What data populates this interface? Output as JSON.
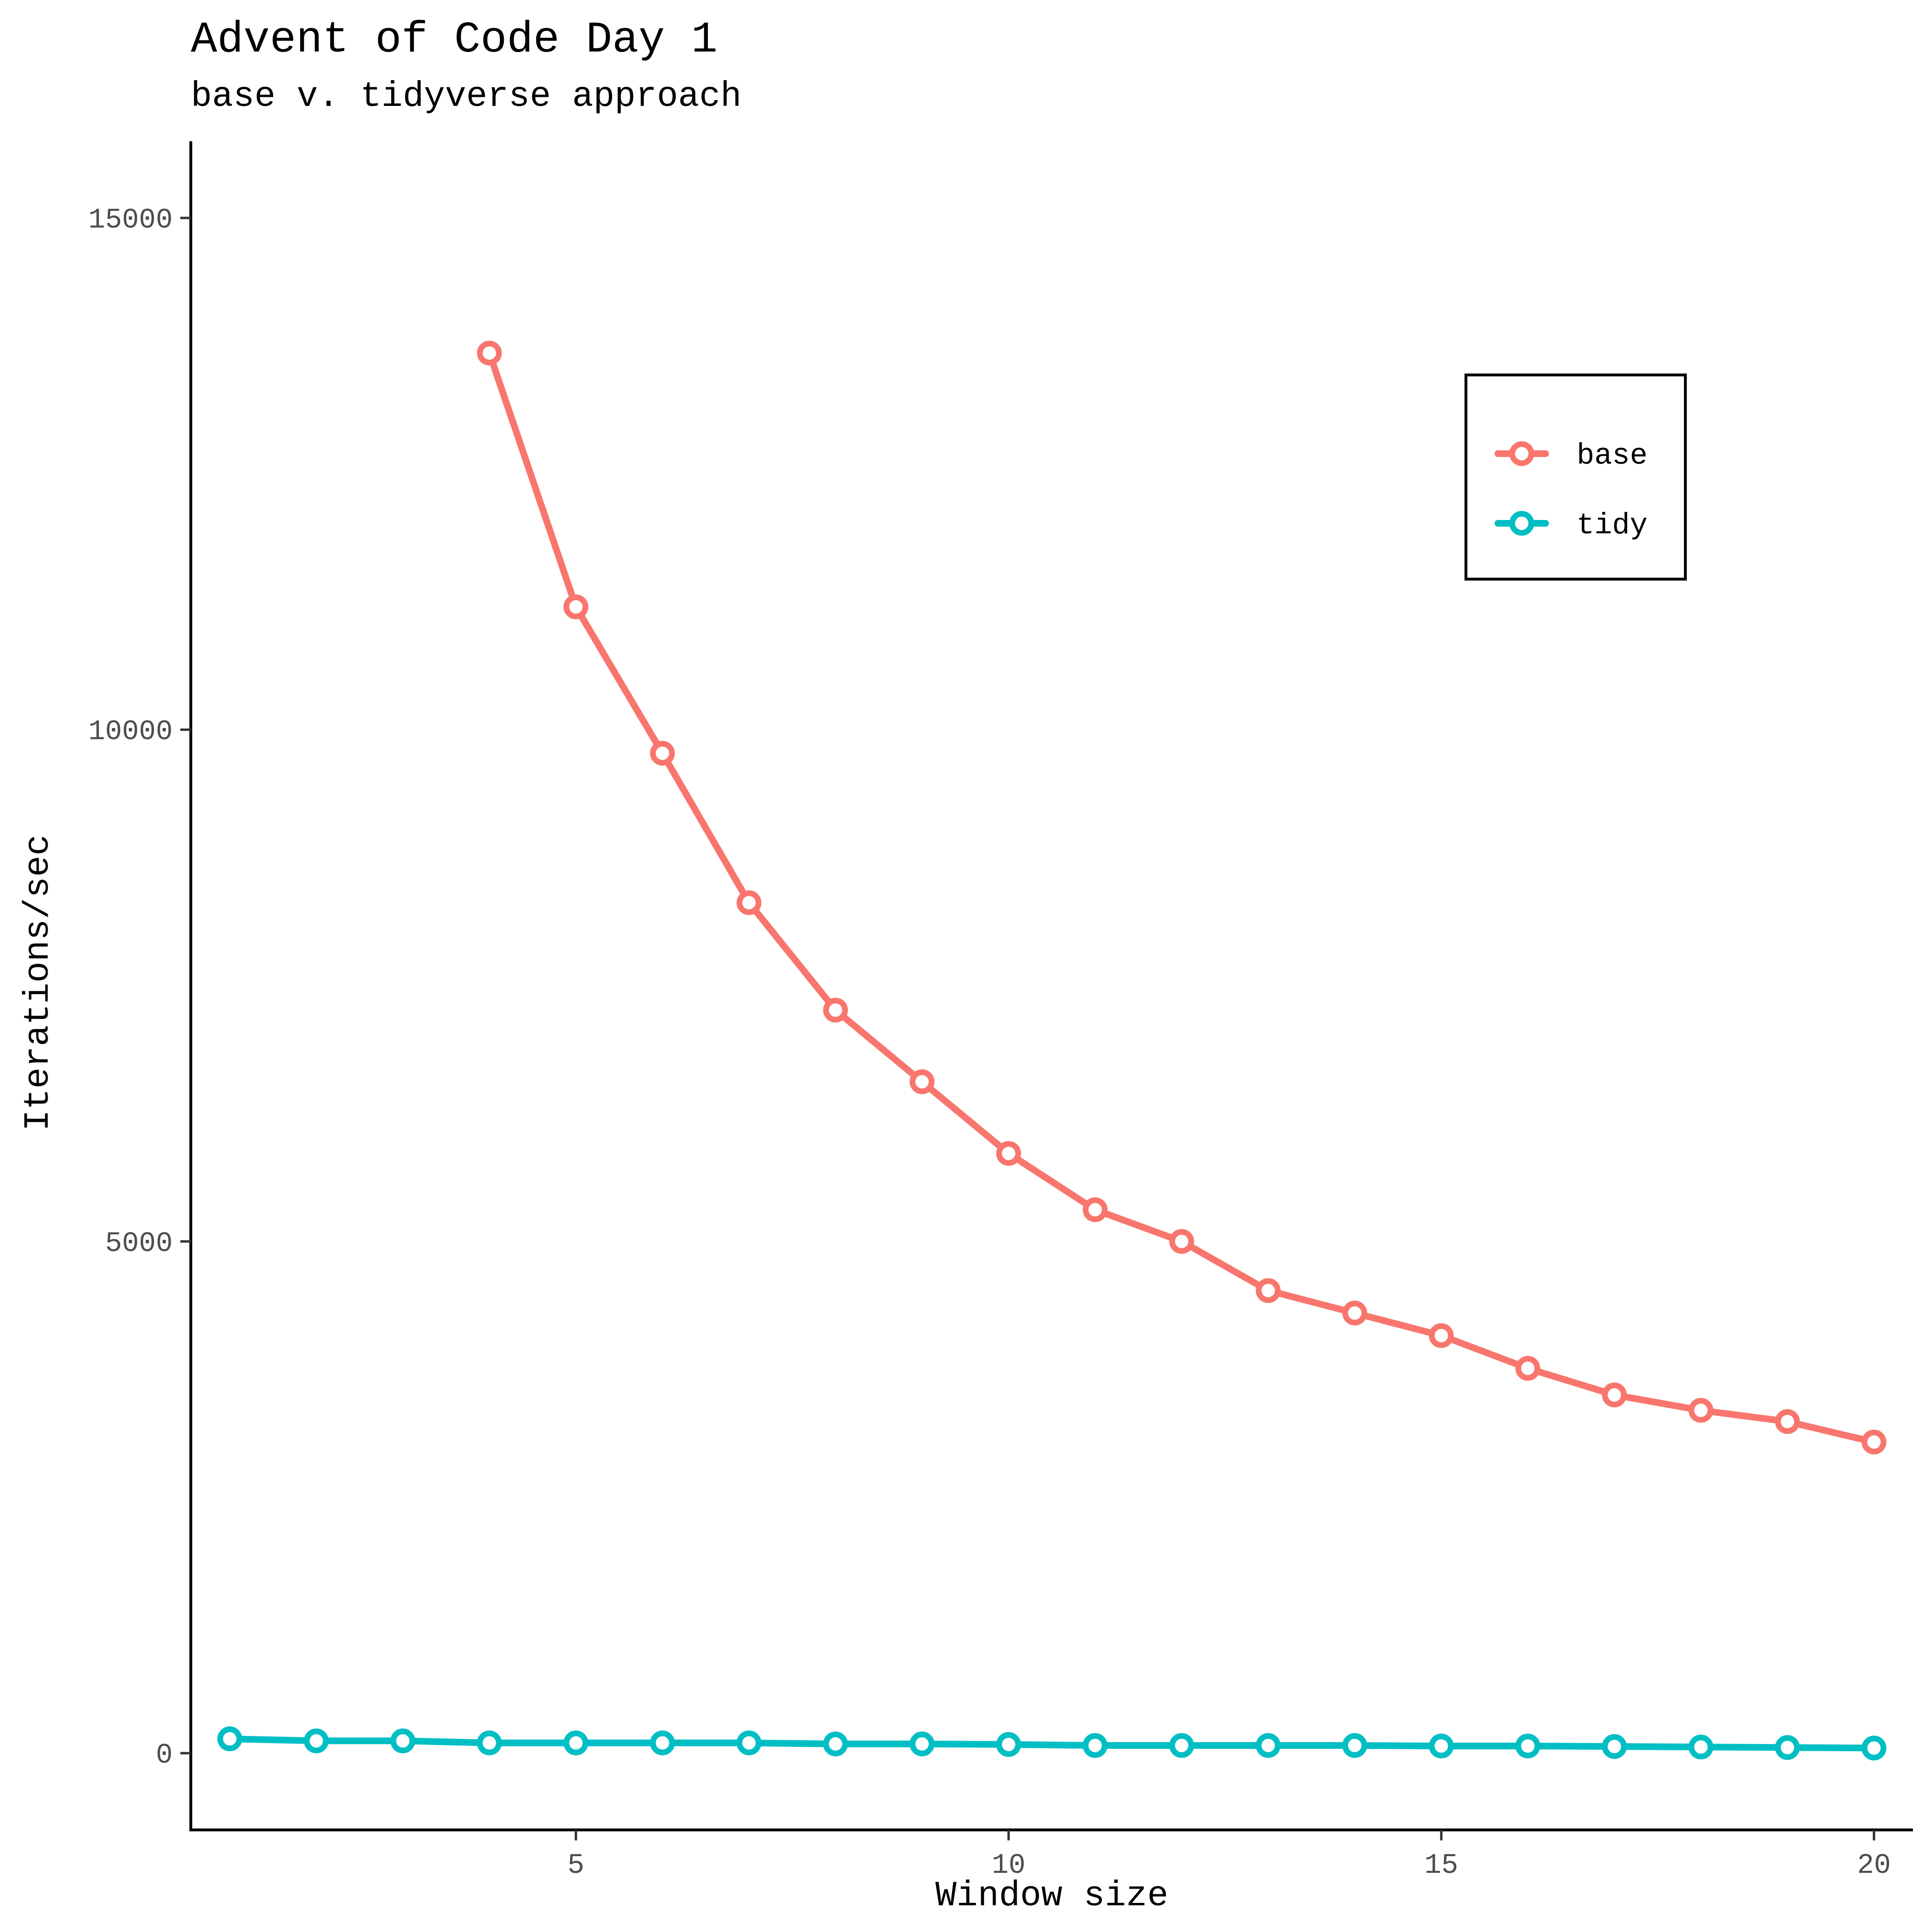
{
  "chart_data": {
    "type": "line",
    "title": "Advent of Code Day 1",
    "subtitle": "base v. tidyverse approach",
    "xlabel": "Window size",
    "ylabel": "Iterations/sec",
    "xlim": [
      0.55,
      20.45
    ],
    "ylim": [
      -750,
      15750
    ],
    "xticks": [
      5,
      10,
      15,
      20
    ],
    "yticks": [
      0,
      5000,
      10000,
      15000
    ],
    "grid": false,
    "legend_position": "top-right",
    "series": [
      {
        "name": "base",
        "color": "#F8766D",
        "x": [
          4,
          5,
          6,
          7,
          8,
          9,
          10,
          11,
          12,
          13,
          14,
          15,
          16,
          17,
          18,
          19,
          20
        ],
        "values": [
          13680,
          11200,
          9770,
          8310,
          7260,
          6560,
          5860,
          5310,
          5000,
          4520,
          4300,
          4080,
          3760,
          3500,
          3350,
          3240,
          3040
        ]
      },
      {
        "name": "tidy",
        "color": "#00BFC4",
        "x": [
          1,
          2,
          3,
          4,
          5,
          6,
          7,
          8,
          9,
          10,
          11,
          12,
          13,
          14,
          15,
          16,
          17,
          18,
          19,
          20
        ],
        "values": [
          140,
          120,
          120,
          100,
          100,
          100,
          100,
          90,
          90,
          85,
          75,
          75,
          75,
          75,
          70,
          70,
          65,
          60,
          55,
          50
        ]
      }
    ]
  }
}
